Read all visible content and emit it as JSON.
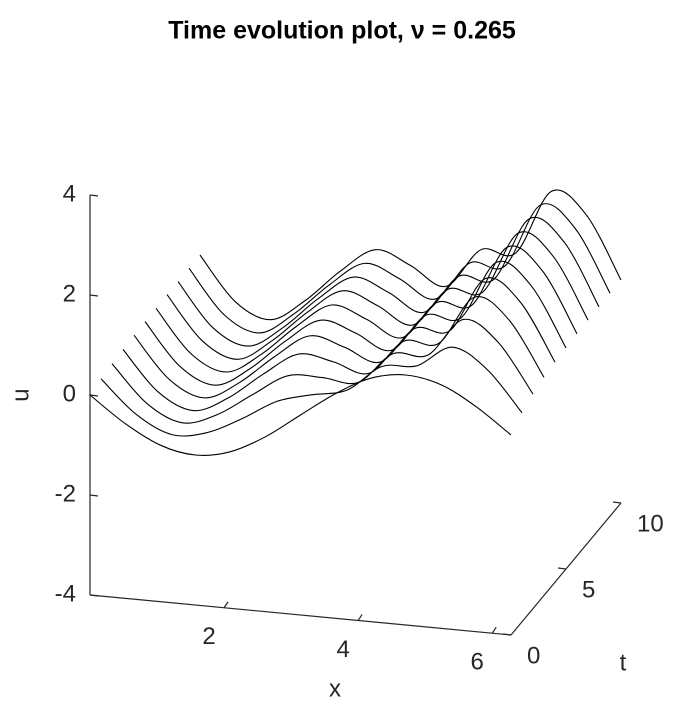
{
  "chart_data": {
    "type": "waterfall3d",
    "title": "Time evolution plot, ν = 0.265",
    "x_label": "x",
    "t_label": "t",
    "u_label": "u",
    "xlim": [
      0,
      6.28
    ],
    "xticks": [
      2,
      4,
      6
    ],
    "tlim": [
      0,
      10
    ],
    "tticks": [
      0,
      5,
      10
    ],
    "ulim": [
      -4,
      4
    ],
    "uticks": [
      -4,
      -2,
      0,
      2,
      4
    ],
    "color": "#000000",
    "x": [
      0,
      0.52,
      1.05,
      1.57,
      2.09,
      2.62,
      3.14,
      3.67,
      4.19,
      4.71,
      5.24,
      5.76,
      6.28
    ],
    "series": [
      {
        "t": 0,
        "values": [
          0,
          -0.5,
          -0.87,
          -1,
          -0.87,
          -0.5,
          0,
          0.5,
          0.87,
          1,
          0.87,
          0.5,
          0
        ]
      },
      {
        "t": 1,
        "values": [
          0.06,
          -0.58,
          -0.92,
          -0.82,
          -0.48,
          -0.06,
          0.14,
          0.3,
          0.84,
          0.92,
          1.36,
          0.98,
          0.18
        ]
      },
      {
        "t": 2,
        "values": [
          0.1,
          -0.63,
          -0.95,
          -0.72,
          -0.26,
          0.19,
          0.22,
          0.19,
          0.83,
          0.87,
          1.65,
          1.26,
          0.29
        ]
      },
      {
        "t": 3,
        "values": [
          0.12,
          -0.66,
          -0.97,
          -0.65,
          -0.11,
          0.36,
          0.27,
          0.11,
          0.82,
          0.84,
          1.83,
          1.44,
          0.36
        ]
      },
      {
        "t": 4,
        "values": [
          0.14,
          -0.67,
          -0.98,
          -0.61,
          -0.03,
          0.46,
          0.3,
          0.07,
          0.81,
          0.83,
          1.94,
          1.54,
          0.4
        ]
      },
      {
        "t": 5,
        "values": [
          0.15,
          -0.68,
          -0.99,
          -0.59,
          0.02,
          0.51,
          0.32,
          0.04,
          0.81,
          0.82,
          2,
          1.6,
          0.42
        ]
      },
      {
        "t": 6,
        "values": [
          0.15,
          -0.69,
          -0.99,
          -0.57,
          0.05,
          0.55,
          0.33,
          0.03,
          0.8,
          0.81,
          2.04,
          1.64,
          0.44
        ]
      },
      {
        "t": 7,
        "values": [
          0.16,
          -0.69,
          -1,
          -0.56,
          0.07,
          0.57,
          0.34,
          0.02,
          0.8,
          0.81,
          2.06,
          1.66,
          0.45
        ]
      },
      {
        "t": 8,
        "values": [
          0.16,
          -0.7,
          -1,
          -0.56,
          0.08,
          0.58,
          0.34,
          0.01,
          0.8,
          0.8,
          2.08,
          1.68,
          0.45
        ]
      },
      {
        "t": 9,
        "values": [
          0.16,
          -0.7,
          -1,
          -0.55,
          0.09,
          0.59,
          0.35,
          0.01,
          0.8,
          0.8,
          2.09,
          1.69,
          0.46
        ]
      },
      {
        "t": 10,
        "values": [
          0.16,
          -0.7,
          -1,
          -0.55,
          0.1,
          0.6,
          0.35,
          0,
          0.8,
          0.8,
          2.1,
          1.7,
          0.46
        ]
      }
    ]
  }
}
